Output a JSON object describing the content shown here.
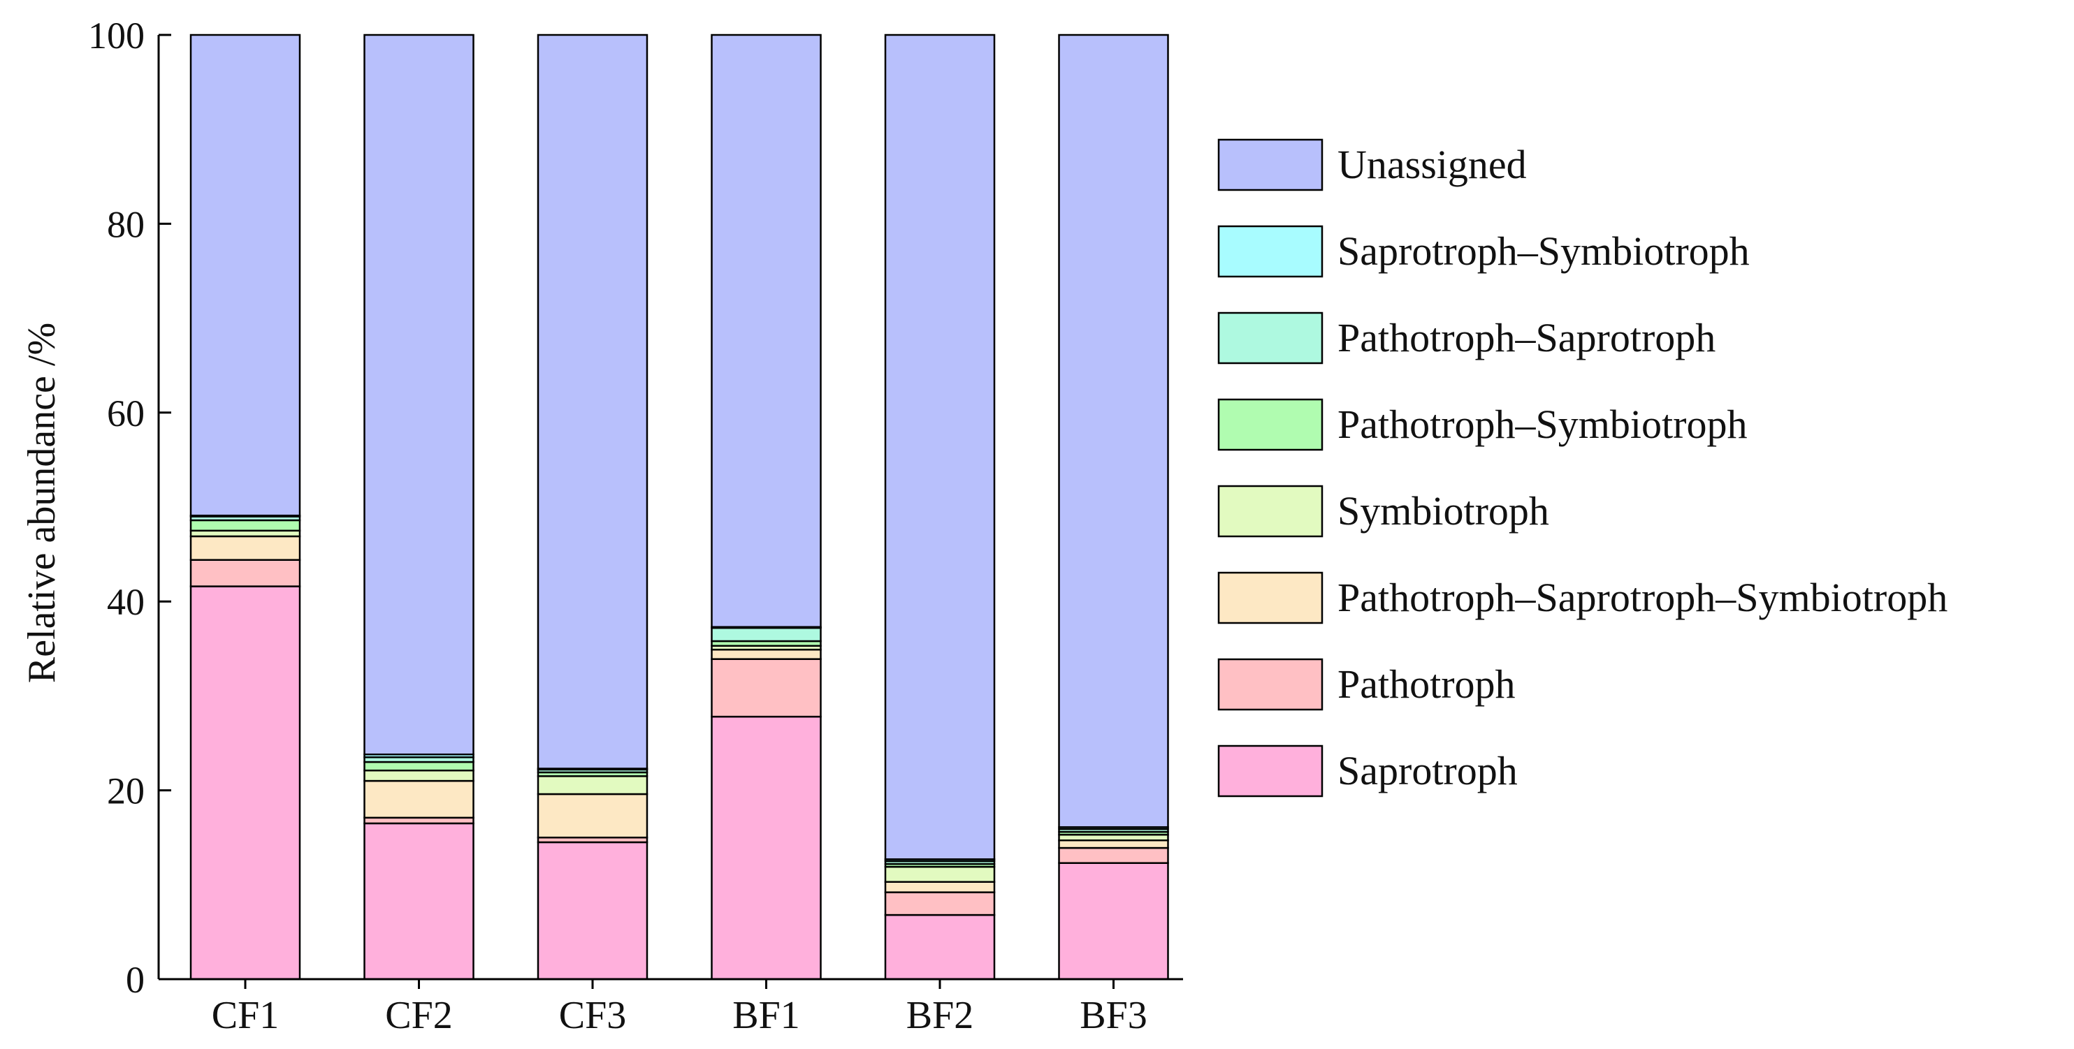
{
  "chart_data": {
    "type": "bar",
    "stacked": true,
    "title": "",
    "xlabel": "",
    "ylabel": "Relative abundance /%",
    "ylim": [
      0,
      100
    ],
    "yticks": [
      0,
      20,
      40,
      60,
      80,
      100
    ],
    "legend_position": "right",
    "categories": [
      "CF1",
      "CF2",
      "CF3",
      "BF1",
      "BF2",
      "BF3"
    ],
    "series": [
      {
        "name": "Saprotroph",
        "color": "#ffb0dc",
        "values": [
          41.6,
          16.5,
          14.5,
          27.8,
          6.8,
          12.3
        ]
      },
      {
        "name": "Pathotroph",
        "color": "#ffc0c4",
        "values": [
          2.8,
          0.6,
          0.5,
          6.1,
          2.4,
          1.6
        ]
      },
      {
        "name": "Pathotroph–Saprotroph–Symbiotroph",
        "color": "#fde8c4",
        "values": [
          2.5,
          3.9,
          4.6,
          1.0,
          1.1,
          0.8
        ]
      },
      {
        "name": "Symbiotroph",
        "color": "#e2fac0",
        "values": [
          0.6,
          1.1,
          1.9,
          0.4,
          1.6,
          0.6
        ]
      },
      {
        "name": "Pathotroph–Symbiotroph",
        "color": "#b0fcb0",
        "values": [
          1.1,
          0.9,
          0.4,
          0.5,
          0.3,
          0.3
        ]
      },
      {
        "name": "Pathotroph–Saprotroph",
        "color": "#aef9e0",
        "values": [
          0.4,
          0.5,
          0.3,
          1.4,
          0.3,
          0.3
        ]
      },
      {
        "name": "Saprotroph–Symbiotroph",
        "color": "#a8fcff",
        "values": [
          0.1,
          0.3,
          0.1,
          0.1,
          0.2,
          0.2
        ]
      },
      {
        "name": "Unassigned",
        "color": "#b8c0fc",
        "values": [
          50.9,
          76.2,
          77.7,
          62.7,
          87.3,
          83.9
        ]
      }
    ]
  }
}
